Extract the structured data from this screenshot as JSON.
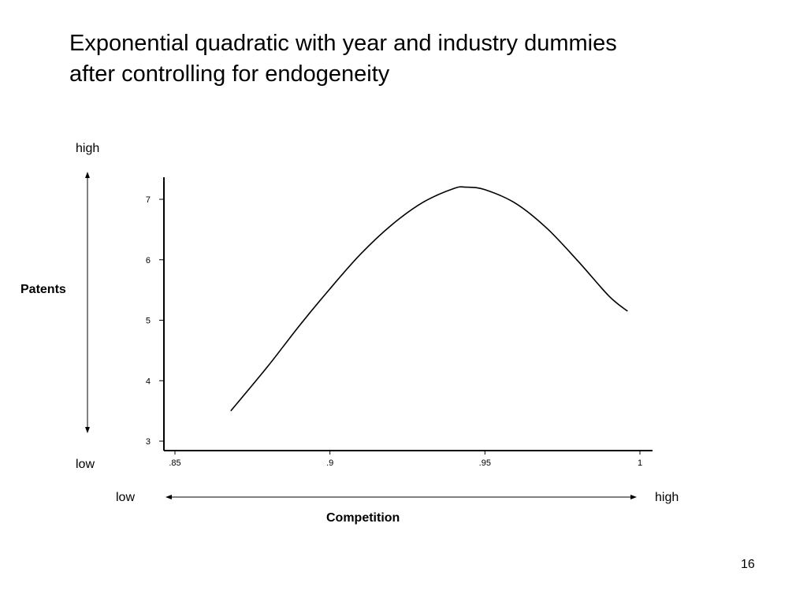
{
  "slide": {
    "title_line1": "Exponential quadratic with year and industry dummies",
    "title_line2": "after controlling for endogeneity",
    "page_number": "16"
  },
  "annotations": {
    "y_high": "high",
    "y_low": "low",
    "y_name": "Patents",
    "x_low": "low",
    "x_high": "high",
    "x_name": "Competition"
  },
  "chart_data": {
    "type": "line",
    "title": "",
    "xlabel": "Competition",
    "ylabel": "Patents",
    "xlim": [
      0.85,
      1.0
    ],
    "ylim": [
      3,
      7.3
    ],
    "x_ticks": [
      0.85,
      0.9,
      0.95,
      1.0
    ],
    "x_tick_labels": [
      ".85",
      ".9",
      ".95",
      "1"
    ],
    "y_ticks": [
      3,
      4,
      5,
      6,
      7
    ],
    "y_tick_labels": [
      "3",
      "4",
      "5",
      "6",
      "7"
    ],
    "grid": false,
    "series": [
      {
        "x": [
          0.868,
          0.88,
          0.89,
          0.9,
          0.91,
          0.92,
          0.93,
          0.94,
          0.944,
          0.95,
          0.96,
          0.97,
          0.98,
          0.99,
          0.996
        ],
        "y": [
          3.5,
          4.24,
          4.9,
          5.52,
          6.1,
          6.58,
          6.95,
          7.18,
          7.2,
          7.16,
          6.93,
          6.52,
          5.98,
          5.4,
          5.15
        ]
      }
    ],
    "colors": {
      "line": "#000000",
      "axis": "#000000"
    }
  }
}
